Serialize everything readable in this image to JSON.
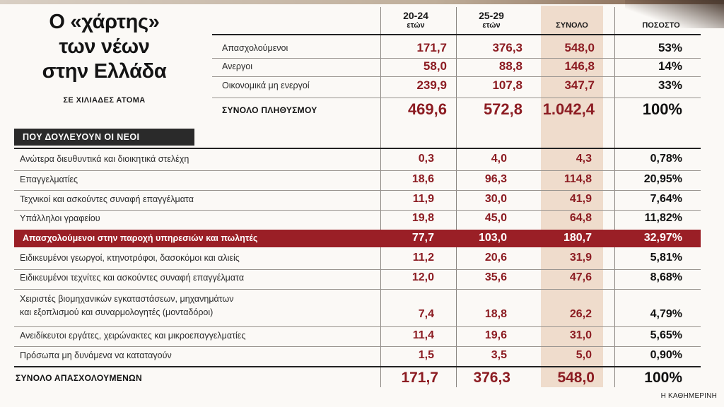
{
  "title_lines": [
    "Ο «χάρτης»",
    "των νέων",
    "στην Ελλάδα"
  ],
  "subtitle": "ΣΕ ΧΙΛΙΑΔΕΣ ΑΤΟΜΑ",
  "headers": {
    "col1_top": "20-24",
    "col1_bottom": "ετών",
    "col2_top": "25-29",
    "col2_bottom": "ετών",
    "total": "ΣΥΝΟΛΟ",
    "percent": "ΠΟΣΟΣΤΟ"
  },
  "summary_rows": [
    {
      "label": "Απασχολούμενοι",
      "a": "171,7",
      "b": "376,3",
      "total": "548,0",
      "pct": "53%"
    },
    {
      "label": "Ανεργοι",
      "a": "58,0",
      "b": "88,8",
      "total": "146,8",
      "pct": "14%"
    },
    {
      "label": "Οικονομικά μη ενεργοί",
      "a": "239,9",
      "b": "107,8",
      "total": "347,7",
      "pct": "33%"
    }
  ],
  "summary_total": {
    "label": "ΣΥΝΟΛΟ ΠΛΗΘΥΣΜΟΥ",
    "a": "469,6",
    "b": "572,8",
    "total": "1.042,4",
    "pct": "100%"
  },
  "section_title": "ΠΟΥ ΔΟΥΛΕΥΟΥΝ ΟΙ ΝΕΟΙ",
  "jobs": [
    {
      "label": "Ανώτερα διευθυντικά και διοικητικά στελέχη",
      "a": "0,3",
      "b": "4,0",
      "total": "4,3",
      "pct": "0,78%"
    },
    {
      "label": "Επαγγελματίες",
      "a": "18,6",
      "b": "96,3",
      "total": "114,8",
      "pct": "20,95%"
    },
    {
      "label": "Τεχνικοί και ασκούντες συναφή επαγγέλματα",
      "a": "11,9",
      "b": "30,0",
      "total": "41,9",
      "pct": "7,64%"
    },
    {
      "label": "Υπάλληλοι γραφείου",
      "a": "19,8",
      "b": "45,0",
      "total": "64,8",
      "pct": "11,82%"
    },
    {
      "label": "Απασχολούμενοι στην παροχή υπηρεσιών και πωλητές",
      "a": "77,7",
      "b": "103,0",
      "total": "180,7",
      "pct": "32,97%"
    },
    {
      "label": "Ειδικευμένοι γεωργοί, κτηνοτρόφοι, δασοκόμοι και αλιείς",
      "a": "11,2",
      "b": "20,6",
      "total": "31,9",
      "pct": "5,81%"
    },
    {
      "label": "Ειδικευμένοι τεχνίτες και ασκούντες συναφή επαγγέλματα",
      "a": "12,0",
      "b": "35,6",
      "total": "47,6",
      "pct": "8,68%"
    },
    {
      "label_line1": "Χειριστές βιομηχανικών εγκαταστάσεων, μηχανημάτων",
      "label_line2": "και εξοπλισμού και συναρμολογητές (μονταδόροι)",
      "a": "7,4",
      "b": "18,8",
      "total": "26,2",
      "pct": "4,79%"
    },
    {
      "label": "Ανειδίκευτοι εργάτες, χειρώνακτες και μικροεπαγγελματίες",
      "a": "11,4",
      "b": "19,6",
      "total": "31,0",
      "pct": "5,65%"
    },
    {
      "label": "Πρόσωπα μη δυνάμενα να καταταγούν",
      "a": "1,5",
      "b": "3,5",
      "total": "5,0",
      "pct": "0,90%"
    }
  ],
  "jobs_total": {
    "label": "ΣΥΝΟΛΟ ΑΠΑΣΧΟΛΟΥΜΕΝΩΝ",
    "a": "171,7",
    "b": "376,3",
    "total": "548,0",
    "pct": "100%"
  },
  "credit": "Η ΚΑΘΗΜΕΡΙΝΗ",
  "colors": {
    "accent_red": "#8c1c22",
    "highlight_row": "#9a1f26",
    "total_band": "#efdccc"
  }
}
